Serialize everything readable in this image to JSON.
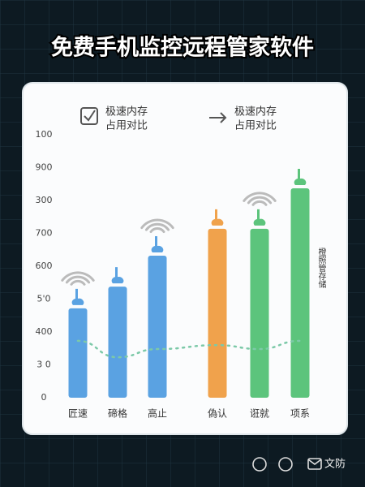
{
  "chart_data": {
    "type": "bar",
    "title": "免费手机监控远程管家软件",
    "legend": [
      {
        "lines": [
          "极速内存",
          "占用对比"
        ]
      },
      {
        "lines": [
          "极速内存",
          "占用对比"
        ]
      }
    ],
    "categories": [
      "匠速",
      "碲格",
      "高止",
      "偽认",
      "诳就",
      "项系"
    ],
    "values": [
      272,
      338,
      432,
      514,
      514,
      637
    ],
    "colors": [
      "#5aa2e2",
      "#5aa2e2",
      "#5aa2e2",
      "#f0a24c",
      "#5cc47c",
      "#5cc47c"
    ],
    "trend": {
      "values": [
        173,
        123,
        148,
        160,
        148,
        173
      ],
      "color": "#7cc9a8"
    },
    "ylim": [
      0,
      800
    ],
    "yticks": [
      0,
      {
        "value": 100,
        "label": "3 0"
      },
      {
        "value": 200,
        "label": "400"
      },
      {
        "value": 300,
        "label": "5'0"
      },
      {
        "value": 400,
        "label": "600"
      },
      {
        "value": 500,
        "label": "700"
      },
      {
        "value": 600,
        "label": "300"
      },
      {
        "value": 700,
        "label": "900"
      },
      {
        "value": 800,
        "label": "100"
      }
    ],
    "annotation": "橙照管存储"
  },
  "footer": {
    "label": "文防"
  }
}
